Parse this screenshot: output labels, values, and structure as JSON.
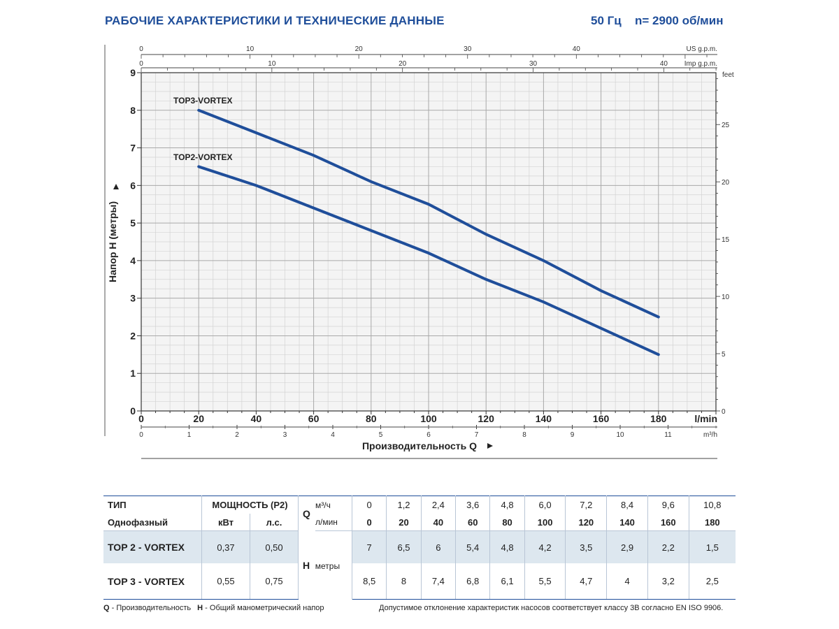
{
  "header": {
    "title": "РАБОЧИЕ ХАРАКТЕРИСТИКИ И ТЕХНИЧЕСКИЕ ДАННЫЕ",
    "frequency": "50 Гц",
    "speed": "n= 2900 об/мин"
  },
  "chart_data": {
    "type": "line",
    "title": "",
    "xlabel": "Производительность Q",
    "ylabel": "Напор H (метры)",
    "x_unit_label": "l/min",
    "xlim": [
      0,
      200
    ],
    "ylim": [
      0,
      9
    ],
    "x_ticks": [
      0,
      20,
      40,
      60,
      80,
      100,
      120,
      140,
      160,
      180
    ],
    "y_ticks": [
      0,
      1,
      2,
      3,
      4,
      5,
      6,
      7,
      8,
      9
    ],
    "series": [
      {
        "name": "TOP3-VORTEX",
        "x": [
          20,
          40,
          60,
          80,
          100,
          120,
          140,
          160,
          180
        ],
        "y": [
          8,
          7.4,
          6.8,
          6.1,
          5.5,
          4.7,
          4,
          3.2,
          2.5
        ]
      },
      {
        "name": "TOP2-VORTEX",
        "x": [
          20,
          40,
          60,
          80,
          100,
          120,
          140,
          160,
          180
        ],
        "y": [
          6.5,
          6,
          5.4,
          4.8,
          4.2,
          3.5,
          2.9,
          2.2,
          1.5
        ]
      }
    ],
    "series_color": "#1f4e9a",
    "secondary_axes": {
      "us_gpm": {
        "label": "US g.p.m.",
        "ticks": [
          0,
          10,
          20,
          30,
          40
        ]
      },
      "imp_gpm": {
        "label": "Imp g.p.m.",
        "ticks": [
          0,
          10,
          20,
          30,
          40
        ]
      },
      "m3h": {
        "label": "m³/h",
        "ticks": [
          0,
          1,
          2,
          3,
          4,
          5,
          6,
          7,
          8,
          9,
          10,
          11
        ]
      },
      "feet": {
        "label": "feet",
        "ticks": [
          0,
          5,
          10,
          15,
          20,
          25
        ]
      }
    },
    "grid": true
  },
  "table": {
    "type_label": "ТИП",
    "phase_label": "Однофазный",
    "power_label": "МОЩНОСТЬ (P2)",
    "kw_label": "кВт",
    "hp_label": "л.с.",
    "q_label": "Q",
    "q_unit_m3h": "м³/ч",
    "q_unit_lmin": "л/мин",
    "q_m3h": [
      "0",
      "1,2",
      "2,4",
      "3,6",
      "4,8",
      "6,0",
      "7,2",
      "8,4",
      "9,6",
      "10,8"
    ],
    "q_lmin": [
      "0",
      "20",
      "40",
      "60",
      "80",
      "100",
      "120",
      "140",
      "160",
      "180"
    ],
    "h_label": "H",
    "h_unit": "метры",
    "rows": [
      {
        "model": "TOP 2 - VORTEX",
        "kw": "0,37",
        "hp": "0,50",
        "h": [
          "7",
          "6,5",
          "6",
          "5,4",
          "4,8",
          "4,2",
          "3,5",
          "2,9",
          "2,2",
          "1,5"
        ]
      },
      {
        "model": "TOP 3 - VORTEX",
        "kw": "0,55",
        "hp": "0,75",
        "h": [
          "8,5",
          "8",
          "7,4",
          "6,8",
          "6,1",
          "5,5",
          "4,7",
          "4",
          "3,2",
          "2,5"
        ]
      }
    ]
  },
  "footer": {
    "q_abbr": "Q",
    "q_text": " - Производительность",
    "h_abbr": "H",
    "h_text": " - Общий манометрический напор",
    "tolerance": "Допустимое отклонение характеристик насосов соответствует классу 3B согласно EN ISO 9906."
  }
}
